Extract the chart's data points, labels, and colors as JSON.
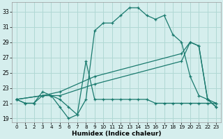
{
  "xlabel": "Humidex (Indice chaleur)",
  "background_color": "#d5eeed",
  "grid_color": "#b0d8d4",
  "line_color": "#1a7a6e",
  "x_ticks": [
    0,
    1,
    2,
    3,
    4,
    5,
    6,
    7,
    8,
    9,
    10,
    11,
    12,
    13,
    14,
    15,
    16,
    17,
    18,
    19,
    20,
    21,
    22,
    23
  ],
  "y_ticks": [
    19,
    21,
    23,
    25,
    27,
    29,
    31,
    33
  ],
  "xlim": [
    -0.5,
    23.5
  ],
  "ylim": [
    18.5,
    34.2
  ],
  "curve_main_x": [
    0,
    1,
    2,
    3,
    4,
    5,
    6,
    7,
    8,
    9,
    10,
    11,
    12,
    13,
    14,
    15,
    16,
    17,
    18,
    19,
    20,
    21,
    22,
    23
  ],
  "curve_main_y": [
    21.5,
    21.0,
    21.0,
    22.5,
    22.0,
    21.5,
    20.5,
    19.5,
    21.5,
    30.5,
    31.5,
    31.5,
    32.5,
    33.5,
    33.5,
    32.5,
    32.0,
    32.5,
    30.0,
    29.0,
    24.5,
    22.0,
    21.5,
    20.5
  ],
  "curve_flat_x": [
    0,
    1,
    2,
    3,
    4,
    5,
    6,
    7,
    8,
    9,
    10,
    11,
    12,
    13,
    14,
    15,
    16,
    17,
    18,
    19,
    20,
    21,
    22,
    23
  ],
  "curve_flat_y": [
    21.5,
    21.0,
    21.0,
    22.0,
    22.0,
    20.5,
    19.0,
    19.5,
    26.5,
    21.5,
    21.5,
    21.5,
    21.5,
    21.5,
    21.5,
    21.5,
    21.0,
    21.0,
    21.0,
    21.0,
    21.0,
    21.0,
    21.0,
    21.0
  ],
  "curve_diag1_x": [
    0,
    3,
    5,
    9,
    19,
    20,
    21,
    22,
    23
  ],
  "curve_diag1_y": [
    21.5,
    22.0,
    22.5,
    24.5,
    27.5,
    29.0,
    28.5,
    21.5,
    20.5
  ],
  "curve_diag2_x": [
    0,
    3,
    5,
    9,
    19,
    20,
    21,
    22,
    23
  ],
  "curve_diag2_y": [
    21.5,
    22.0,
    22.0,
    23.5,
    26.5,
    29.0,
    28.5,
    21.5,
    21.0
  ]
}
